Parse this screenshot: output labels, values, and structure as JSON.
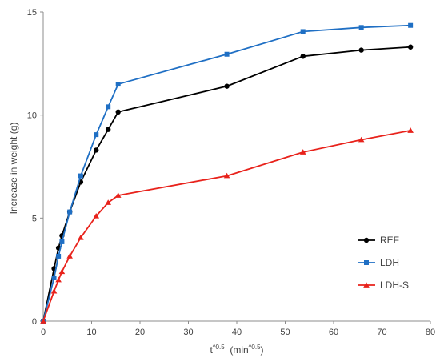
{
  "chart_data": {
    "type": "line",
    "xlabel": "t^0.5 (min^0.5)",
    "xlabel_base": "t",
    "xlabel_sup": "^0.5",
    "xlabel_unit_open": "  (min",
    "xlabel_unit_sup": "^0.5",
    "xlabel_unit_close": ")",
    "ylabel": "Increase in weight (g)",
    "xlim": [
      0,
      80
    ],
    "ylim": [
      0,
      15
    ],
    "xticks": [
      0,
      10,
      20,
      30,
      40,
      50,
      60,
      70,
      80
    ],
    "yticks": [
      0,
      5,
      10,
      15
    ],
    "grid": false,
    "legend_position": "lower-right",
    "series": [
      {
        "name": "REF",
        "color": "#000000",
        "marker": "circle",
        "x": [
          0,
          2.24,
          3.16,
          3.87,
          5.48,
          7.75,
          10.95,
          13.42,
          15.49,
          37.95,
          53.67,
          65.73,
          75.89
        ],
        "y": [
          0,
          2.55,
          3.55,
          4.15,
          5.3,
          6.75,
          8.3,
          9.3,
          10.15,
          11.4,
          12.85,
          13.15,
          13.3
        ]
      },
      {
        "name": "LDH",
        "color": "#1f6fc4",
        "marker": "square",
        "x": [
          0,
          2.24,
          3.16,
          3.87,
          5.48,
          7.75,
          10.95,
          13.42,
          15.49,
          37.95,
          53.67,
          65.73,
          75.89
        ],
        "y": [
          0,
          2.1,
          3.15,
          3.85,
          5.3,
          7.05,
          9.05,
          10.4,
          11.5,
          12.95,
          14.05,
          14.25,
          14.35
        ]
      },
      {
        "name": "LDH-S",
        "color": "#e8221b",
        "marker": "triangle",
        "x": [
          0,
          2.24,
          3.16,
          3.87,
          5.48,
          7.75,
          10.95,
          13.42,
          15.49,
          37.95,
          53.67,
          65.73,
          75.89
        ],
        "y": [
          0,
          1.45,
          2.0,
          2.4,
          3.15,
          4.05,
          5.1,
          5.75,
          6.1,
          7.05,
          8.2,
          8.8,
          9.25
        ]
      }
    ]
  }
}
